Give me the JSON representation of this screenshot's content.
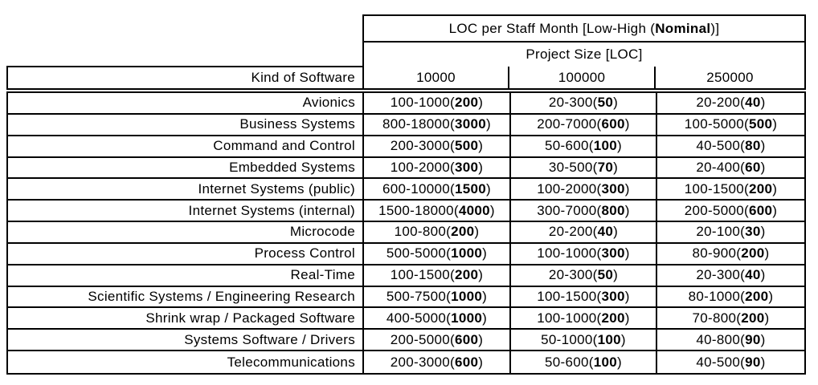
{
  "colors": {
    "border": "#000000",
    "background": "#ffffff",
    "text": "#000000"
  },
  "header": {
    "title": {
      "pre": "LOC per Staff Month [Low-High (",
      "bold": "Nominal",
      "post": ")]"
    },
    "subtitle": "Project Size [LOC]",
    "corner_label": "Kind of Software",
    "columns": [
      "10000",
      "100000",
      "250000"
    ]
  },
  "rows": [
    {
      "label": "Avionics",
      "cells": [
        {
          "pre": "100-1000(",
          "bold": "200",
          "post": ")"
        },
        {
          "pre": "20-300(",
          "bold": "50",
          "post": ")"
        },
        {
          "pre": "20-200(",
          "bold": "40",
          "post": ")"
        }
      ]
    },
    {
      "label": "Business Systems",
      "cells": [
        {
          "pre": "800-18000(",
          "bold": "3000",
          "post": ")"
        },
        {
          "pre": "200-7000(",
          "bold": "600",
          "post": ")"
        },
        {
          "pre": "100-5000(",
          "bold": "500",
          "post": ")"
        }
      ]
    },
    {
      "label": "Command and Control",
      "cells": [
        {
          "pre": "200-3000(",
          "bold": "500",
          "post": ")"
        },
        {
          "pre": "50-600(",
          "bold": "100",
          "post": ")"
        },
        {
          "pre": "40-500(",
          "bold": "80",
          "post": ")"
        }
      ]
    },
    {
      "label": "Embedded Systems",
      "cells": [
        {
          "pre": "100-2000(",
          "bold": "300",
          "post": ")"
        },
        {
          "pre": "30-500(",
          "bold": "70",
          "post": ")"
        },
        {
          "pre": "20-400(",
          "bold": "60",
          "post": ")"
        }
      ]
    },
    {
      "label": "Internet Systems (public)",
      "cells": [
        {
          "pre": "600-10000(",
          "bold": "1500",
          "post": ")"
        },
        {
          "pre": "100-2000(",
          "bold": "300",
          "post": ")"
        },
        {
          "pre": "100-1500(",
          "bold": "200",
          "post": ")"
        }
      ]
    },
    {
      "label": "Internet Systems (internal)",
      "cells": [
        {
          "pre": "1500-18000(",
          "bold": "4000",
          "post": ")"
        },
        {
          "pre": "300-7000(",
          "bold": "800",
          "post": ")"
        },
        {
          "pre": "200-5000(",
          "bold": "600",
          "post": ")"
        }
      ]
    },
    {
      "label": "Microcode",
      "cells": [
        {
          "pre": "100-800(",
          "bold": "200",
          "post": ")"
        },
        {
          "pre": "20-200(",
          "bold": "40",
          "post": ")"
        },
        {
          "pre": "20-100(",
          "bold": "30",
          "post": ")"
        }
      ]
    },
    {
      "label": "Process Control",
      "cells": [
        {
          "pre": "500-5000(",
          "bold": "1000",
          "post": ")"
        },
        {
          "pre": "100-1000(",
          "bold": "300",
          "post": ")"
        },
        {
          "pre": "80-900(",
          "bold": "200",
          "post": ")"
        }
      ]
    },
    {
      "label": "Real-Time",
      "cells": [
        {
          "pre": "100-1500(",
          "bold": "200",
          "post": ")"
        },
        {
          "pre": "20-300(",
          "bold": "50",
          "post": ")"
        },
        {
          "pre": "20-300(",
          "bold": "40",
          "post": ")"
        }
      ]
    },
    {
      "label": "Scientific Systems / Engineering Research",
      "cells": [
        {
          "pre": "500-7500(",
          "bold": "1000",
          "post": ")"
        },
        {
          "pre": "100-1500(",
          "bold": "300",
          "post": ")"
        },
        {
          "pre": "80-1000(",
          "bold": "200",
          "post": ")"
        }
      ]
    },
    {
      "label": "Shrink wrap / Packaged Software",
      "cells": [
        {
          "pre": "400-5000(",
          "bold": "1000",
          "post": ")"
        },
        {
          "pre": "100-1000(",
          "bold": "200",
          "post": ")"
        },
        {
          "pre": "70-800(",
          "bold": "200",
          "post": ")"
        }
      ]
    },
    {
      "label": "Systems Software / Drivers",
      "cells": [
        {
          "pre": "200-5000(",
          "bold": "600",
          "post": ")"
        },
        {
          "pre": "50-1000(",
          "bold": "100",
          "post": ")"
        },
        {
          "pre": "40-800(",
          "bold": "90",
          "post": ")"
        }
      ]
    },
    {
      "label": "Telecommunications",
      "cells": [
        {
          "pre": "200-3000(",
          "bold": "600",
          "post": ")"
        },
        {
          "pre": "50-600(",
          "bold": "100",
          "post": ")"
        },
        {
          "pre": "40-500(",
          "bold": "90",
          "post": ")"
        }
      ]
    }
  ]
}
